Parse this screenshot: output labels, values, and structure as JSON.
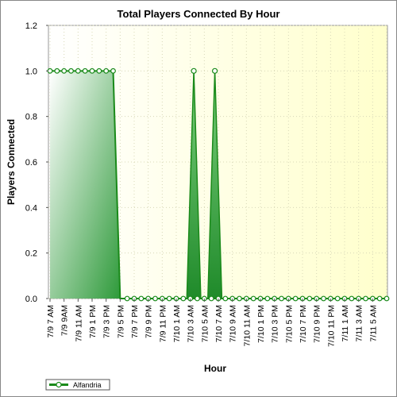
{
  "chart_data": {
    "type": "area",
    "title": "Total Players Connected By Hour",
    "xlabel": "Hour",
    "ylabel": "Players Connected",
    "ylim": [
      0,
      1.2
    ],
    "yticks": [
      "0.0",
      "0.2",
      "0.4",
      "0.6",
      "0.8",
      "1.0",
      "1.2"
    ],
    "xtick_labels": [
      "7/9 7 AM",
      "7/9 9AM",
      "7/9 11 AM",
      "7/9 1 PM",
      "7/9 3 PM",
      "7/9 5 PM",
      "7/9 7 PM",
      "7/9 9 PM",
      "7/9 11 PM",
      "7/10 1 AM",
      "7/10 3 AM",
      "7/10 5 AM",
      "7/10 7 AM",
      "7/10 9 AM",
      "7/10 11 AM",
      "7/10 1 PM",
      "7/10 3 PM",
      "7/10 5 PM",
      "7/10 7 PM",
      "7/10 9 PM",
      "7/10 11 PM",
      "7/11 1 AM",
      "7/11 3 AM",
      "7/11 5 AM"
    ],
    "grid": true,
    "legend_position": "bottom-left",
    "series": [
      {
        "name": "Alfandria",
        "color": "#1a8a1a",
        "values": [
          1,
          1,
          1,
          1,
          1,
          1,
          1,
          1,
          1,
          1,
          0,
          0,
          0,
          0,
          0,
          0,
          0,
          0,
          0,
          0,
          0,
          0,
          0,
          0,
          0,
          0,
          0,
          0,
          0,
          0,
          0,
          0,
          0,
          0,
          0,
          0,
          0,
          0,
          0,
          0,
          0,
          0,
          0,
          0,
          0,
          0,
          0,
          0,
          0
        ]
      }
    ],
    "spikes": [
      {
        "x_index": 20.5,
        "value": 1
      },
      {
        "x_index": 23.5,
        "value": 1
      }
    ],
    "peak_markers_x_index": [
      20.5,
      23.5
    ]
  }
}
